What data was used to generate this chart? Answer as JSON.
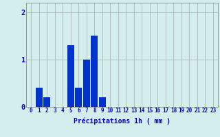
{
  "values": [
    0,
    0.4,
    0.2,
    0,
    0,
    1.3,
    0.4,
    1.0,
    1.5,
    0.2,
    0,
    0,
    0,
    0,
    0,
    0,
    0,
    0,
    0,
    0,
    0,
    0,
    0,
    0
  ],
  "bar_color": "#0033cc",
  "background_color": "#d4eeee",
  "grid_color": "#aaaaaa",
  "axis_label_color": "#0000cc",
  "tick_color": "#0000cc",
  "xlabel": "Précipitations 1h ( mm )",
  "ylim": [
    0,
    2.2
  ],
  "yticks": [
    0,
    1,
    2
  ],
  "num_hours": 24,
  "xlabel_fontsize": 7,
  "tick_fontsize": 5.5
}
